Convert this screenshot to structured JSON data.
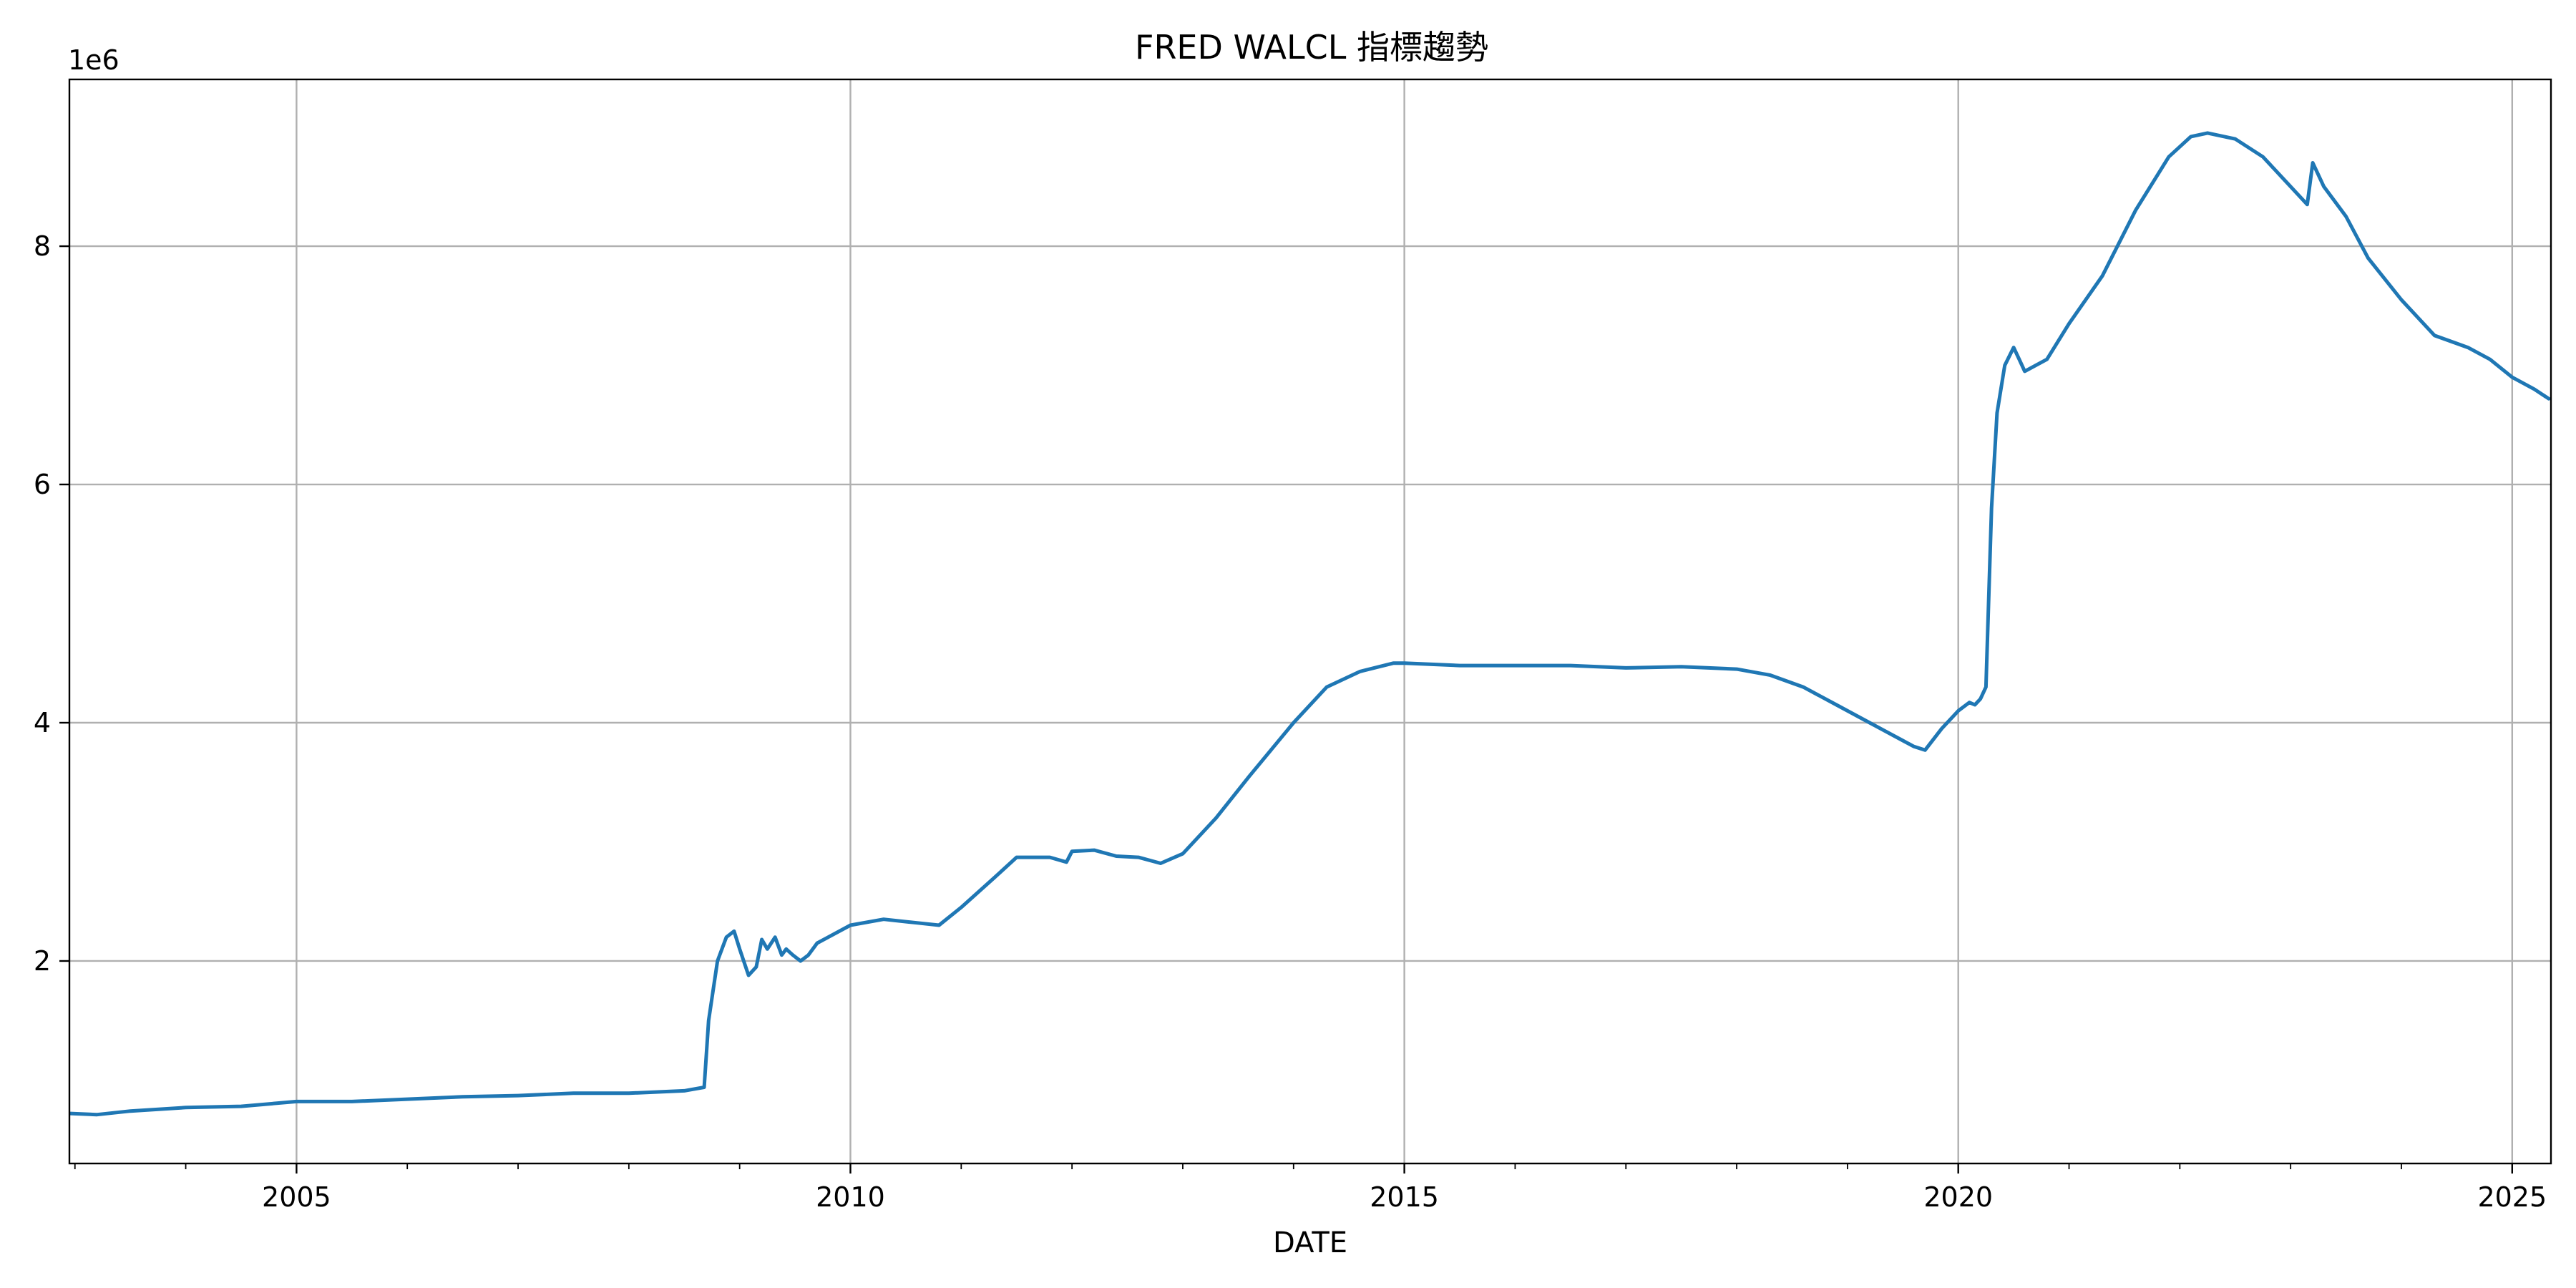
{
  "chart_data": {
    "type": "line",
    "title": "FRED WALCL 指標趨勢",
    "xlabel": "DATE",
    "ylabel": "",
    "y_offset_label": "1e6",
    "xlim": [
      2002.95,
      2025.35
    ],
    "ylim": [
      0.3,
      9.4
    ],
    "x_ticks": [
      2005,
      2010,
      2015,
      2020,
      2025
    ],
    "x_tick_labels": [
      "2005",
      "2010",
      "2015",
      "2020",
      "2025"
    ],
    "y_ticks": [
      2,
      4,
      6,
      8
    ],
    "y_tick_labels": [
      "2",
      "4",
      "6",
      "8"
    ],
    "grid": true,
    "colors": {
      "line": "#1f77b4",
      "grid": "#b0b0b0"
    },
    "series": [
      {
        "x": [
          2002.96,
          2003.2,
          2003.5,
          2004.0,
          2004.5,
          2005.0,
          2005.5,
          2006.0,
          2006.5,
          2007.0,
          2007.5,
          2008.0,
          2008.5,
          2008.68,
          2008.72,
          2008.8,
          2008.88,
          2008.95,
          2009.0,
          2009.08,
          2009.15,
          2009.2,
          2009.25,
          2009.32,
          2009.38,
          2009.42,
          2009.48,
          2009.55,
          2009.62,
          2009.7,
          2009.8,
          2010.0,
          2010.3,
          2010.6,
          2010.8,
          2011.0,
          2011.3,
          2011.5,
          2011.8,
          2011.95,
          2012.0,
          2012.2,
          2012.4,
          2012.6,
          2012.8,
          2013.0,
          2013.3,
          2013.6,
          2014.0,
          2014.3,
          2014.6,
          2014.9,
          2015.0,
          2015.5,
          2016.0,
          2016.5,
          2017.0,
          2017.5,
          2018.0,
          2018.3,
          2018.6,
          2018.9,
          2019.2,
          2019.5,
          2019.6,
          2019.7,
          2019.85,
          2020.0,
          2020.1,
          2020.15,
          2020.2,
          2020.25,
          2020.3,
          2020.35,
          2020.42,
          2020.5,
          2020.55,
          2020.6,
          2020.8,
          2021.0,
          2021.3,
          2021.6,
          2021.9,
          2022.1,
          2022.25,
          2022.5,
          2022.75,
          2023.0,
          2023.15,
          2023.2,
          2023.3,
          2023.5,
          2023.7,
          2024.0,
          2024.3,
          2024.6,
          2024.8,
          2025.0,
          2025.2,
          2025.33
        ],
        "y": [
          0.72,
          0.71,
          0.74,
          0.77,
          0.78,
          0.82,
          0.82,
          0.84,
          0.86,
          0.87,
          0.89,
          0.89,
          0.91,
          0.94,
          1.5,
          2.0,
          2.2,
          2.25,
          2.1,
          1.88,
          1.95,
          2.18,
          2.1,
          2.2,
          2.05,
          2.1,
          2.05,
          2.0,
          2.05,
          2.15,
          2.2,
          2.3,
          2.35,
          2.32,
          2.3,
          2.45,
          2.7,
          2.87,
          2.87,
          2.83,
          2.92,
          2.93,
          2.88,
          2.87,
          2.82,
          2.9,
          3.2,
          3.55,
          4.0,
          4.3,
          4.43,
          4.5,
          4.5,
          4.48,
          4.48,
          4.48,
          4.46,
          4.47,
          4.45,
          4.4,
          4.3,
          4.15,
          4.0,
          3.85,
          3.8,
          3.77,
          3.95,
          4.1,
          4.17,
          4.15,
          4.2,
          4.3,
          5.8,
          6.6,
          7.0,
          7.15,
          7.05,
          6.95,
          7.05,
          7.35,
          7.75,
          8.3,
          8.75,
          8.92,
          8.95,
          8.9,
          8.75,
          8.5,
          8.35,
          8.7,
          8.5,
          8.25,
          7.9,
          7.55,
          7.25,
          7.15,
          7.05,
          6.9,
          6.8,
          6.72
        ]
      }
    ]
  }
}
